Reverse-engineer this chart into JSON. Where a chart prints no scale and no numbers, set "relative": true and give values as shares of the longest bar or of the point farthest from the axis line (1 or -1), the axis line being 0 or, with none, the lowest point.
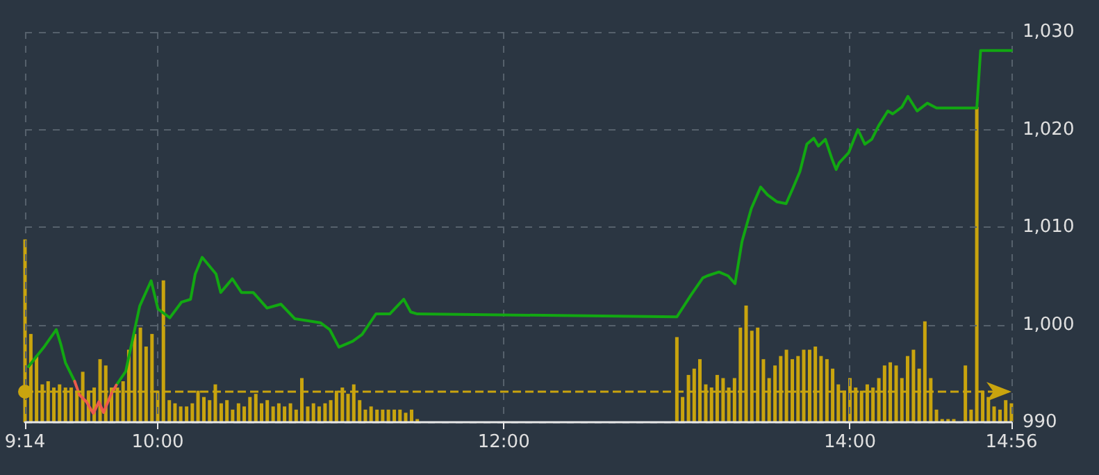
{
  "chart_data": [
    {
      "type": "line",
      "xlim": [
        9.2333,
        14.9333
      ],
      "ylim": [
        990,
        1030
      ],
      "xticks": [
        {
          "value": 9.2333,
          "label": "9:14"
        },
        {
          "value": 10,
          "label": "10:00"
        },
        {
          "value": 12,
          "label": "12:00"
        },
        {
          "value": 14,
          "label": "14:00"
        },
        {
          "value": 14.9333,
          "label": "14:56"
        }
      ],
      "yticks": [
        {
          "value": 990,
          "label": "990"
        },
        {
          "value": 1000,
          "label": "1,000"
        },
        {
          "value": 1010,
          "label": "1,010"
        },
        {
          "value": 1020,
          "label": "1,020"
        },
        {
          "value": 1030,
          "label": "1,030"
        }
      ],
      "grid": true,
      "x": [
        9.253,
        9.293,
        9.347,
        9.414,
        9.44,
        9.467,
        9.52,
        9.548,
        9.588,
        9.628,
        9.66,
        9.687,
        9.729,
        9.761,
        9.815,
        9.855,
        9.896,
        9.962,
        10.002,
        10.07,
        10.137,
        10.19,
        10.217,
        10.257,
        10.337,
        10.364,
        10.431,
        10.484,
        10.552,
        10.632,
        10.712,
        10.793,
        10.94,
        10.994,
        11.047,
        11.127,
        11.181,
        11.261,
        11.341,
        11.422,
        11.462,
        11.5,
        13.0,
        13.08,
        13.15,
        13.175,
        13.243,
        13.296,
        13.336,
        13.376,
        13.43,
        13.484,
        13.524,
        13.577,
        13.631,
        13.671,
        13.711,
        13.751,
        13.791,
        13.818,
        13.858,
        13.898,
        13.92,
        13.938,
        13.992,
        14.046,
        14.086,
        14.126,
        14.166,
        14.219,
        14.247,
        14.3,
        14.335,
        14.388,
        14.447,
        14.5,
        14.733,
        14.755,
        14.933
      ],
      "series": [
        {
          "color": "#12a812",
          "values": [
            995.7,
            996.6,
            997.8,
            999.5,
            998.0,
            996.1,
            994.2,
            null,
            null,
            null,
            null,
            null,
            null,
            993.8,
            995.2,
            998.5,
            1001.9,
            1004.5,
            1001.6,
            1000.7,
            1002.3,
            1002.6,
            1005.2,
            1006.9,
            1005.2,
            1003.3,
            1004.7,
            1003.3,
            1003.3,
            1001.7,
            1002.1,
            1000.6,
            1000.2,
            999.5,
            997.7,
            998.3,
            999.0,
            1001.1,
            1001.1,
            1002.6,
            1001.3,
            1001.1,
            1000.8,
            1003.0,
            1004.8,
            1005.0,
            1005.4,
            1005.0,
            1004.2,
            1008.5,
            1011.9,
            1014.1,
            1013.3,
            1012.6,
            1012.4,
            1014.0,
            1015.7,
            1018.5,
            1019.1,
            1018.3,
            1019.0,
            1016.9,
            1015.9,
            1016.6,
            1017.6,
            1020.0,
            1018.5,
            1019.0,
            1020.4,
            1021.9,
            1021.6,
            1022.3,
            1023.4,
            1021.9,
            1022.7,
            1022.2,
            1022.2,
            1028.1,
            1028.1
          ]
        },
        {
          "color": "#ee5a4c",
          "x": [
            9.52,
            9.548,
            9.588,
            9.628,
            9.66,
            9.687,
            9.729,
            9.761
          ],
          "values": [
            994.2,
            992.8,
            992.1,
            990.9,
            992.1,
            991.0,
            992.8,
            993.8
          ]
        }
      ],
      "ref_lines": [
        {
          "axis": "y",
          "value": 993.1,
          "color": "#c9a40e",
          "line_style": "dashed"
        }
      ]
    },
    {
      "type": "bar",
      "relative": true,
      "xlim": [
        9.2333,
        14.9333
      ],
      "color": "#c9a40e",
      "x": [
        9.2333,
        9.267,
        9.3,
        9.333,
        9.367,
        9.4,
        9.433,
        9.467,
        9.5,
        9.533,
        9.567,
        9.6,
        9.633,
        9.667,
        9.7,
        9.733,
        9.767,
        9.8,
        9.833,
        9.867,
        9.9,
        9.933,
        9.967,
        10.0,
        10.033,
        10.067,
        10.1,
        10.133,
        10.167,
        10.2,
        10.233,
        10.267,
        10.3,
        10.333,
        10.367,
        10.4,
        10.433,
        10.467,
        10.5,
        10.533,
        10.567,
        10.6,
        10.633,
        10.667,
        10.7,
        10.733,
        10.767,
        10.8,
        10.833,
        10.867,
        10.9,
        10.933,
        10.967,
        11.0,
        11.033,
        11.067,
        11.1,
        11.133,
        11.167,
        11.2,
        11.233,
        11.267,
        11.3,
        11.333,
        11.367,
        11.4,
        11.433,
        11.467,
        11.5,
        13.0,
        13.033,
        13.067,
        13.1,
        13.133,
        13.167,
        13.2,
        13.233,
        13.267,
        13.3,
        13.333,
        13.367,
        13.4,
        13.433,
        13.467,
        13.5,
        13.533,
        13.567,
        13.6,
        13.633,
        13.667,
        13.7,
        13.733,
        13.767,
        13.8,
        13.833,
        13.867,
        13.9,
        13.933,
        13.967,
        14.0,
        14.033,
        14.067,
        14.1,
        14.133,
        14.167,
        14.2,
        14.233,
        14.267,
        14.3,
        14.333,
        14.367,
        14.4,
        14.433,
        14.467,
        14.5,
        14.533,
        14.567,
        14.6,
        14.633,
        14.667,
        14.7,
        14.733,
        14.767,
        14.8,
        14.833,
        14.867,
        14.9,
        14.933
      ],
      "values": [
        0.58,
        0.28,
        0.21,
        0.12,
        0.13,
        0.11,
        0.12,
        0.11,
        0.11,
        0.1,
        0.16,
        0.1,
        0.11,
        0.2,
        0.18,
        0.11,
        0.11,
        0.13,
        0.23,
        0.28,
        0.3,
        0.24,
        0.28,
        0.1,
        0.45,
        0.07,
        0.06,
        0.05,
        0.05,
        0.06,
        0.1,
        0.08,
        0.07,
        0.12,
        0.06,
        0.07,
        0.04,
        0.06,
        0.05,
        0.08,
        0.09,
        0.06,
        0.07,
        0.05,
        0.06,
        0.05,
        0.06,
        0.04,
        0.14,
        0.05,
        0.06,
        0.05,
        0.06,
        0.07,
        0.1,
        0.11,
        0.09,
        0.12,
        0.07,
        0.04,
        0.05,
        0.04,
        0.04,
        0.04,
        0.04,
        0.04,
        0.03,
        0.04,
        0.01,
        0.27,
        0.08,
        0.15,
        0.17,
        0.2,
        0.12,
        0.11,
        0.15,
        0.14,
        0.11,
        0.14,
        0.3,
        0.37,
        0.29,
        0.3,
        0.2,
        0.14,
        0.18,
        0.21,
        0.23,
        0.2,
        0.21,
        0.23,
        0.23,
        0.24,
        0.21,
        0.2,
        0.17,
        0.12,
        0.1,
        0.14,
        0.11,
        0.1,
        0.12,
        0.11,
        0.14,
        0.18,
        0.19,
        0.18,
        0.14,
        0.21,
        0.23,
        0.17,
        0.32,
        0.14,
        0.04,
        0.01,
        0.01,
        0.01,
        0,
        0.18,
        0.04,
        1.0,
        0.1,
        0.08,
        0.05,
        0.04,
        0.07,
        0.06
      ]
    }
  ]
}
